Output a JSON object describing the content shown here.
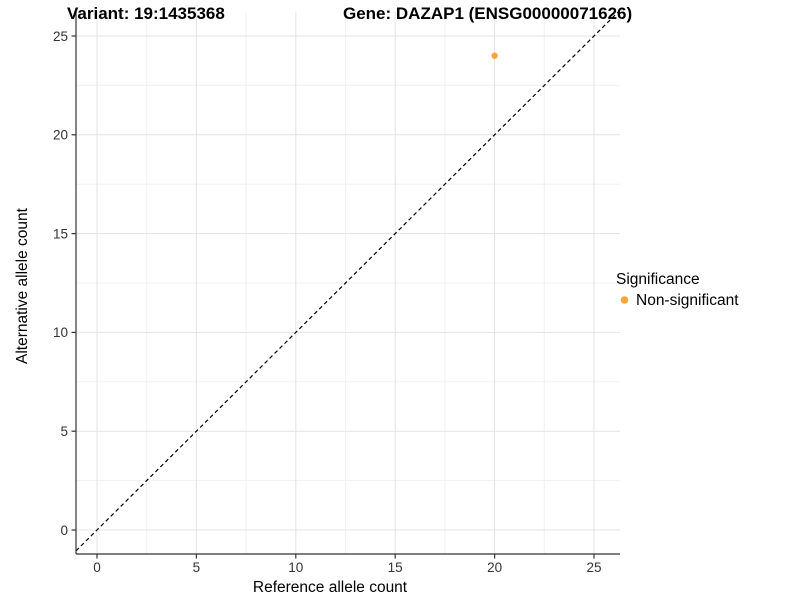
{
  "title": {
    "variant": "Variant: 19:1435368",
    "gene": "Gene: DAZAP1 (ENSG00000071626)"
  },
  "axes": {
    "x_label": "Reference allele count",
    "y_label": "Alternative allele count",
    "x_ticks": [
      0,
      5,
      10,
      15,
      20,
      25
    ],
    "y_ticks": [
      0,
      5,
      10,
      15,
      20,
      25
    ]
  },
  "legend": {
    "title": "Significance",
    "items": [
      {
        "label": "Non-significant",
        "color": "#FAA43C"
      }
    ]
  },
  "colors": {
    "point": "#FAA43C",
    "grid_major": "#e3e3e3",
    "grid_minor": "#f0f0f0",
    "axis_line": "#333333",
    "reference_line": "#000000"
  },
  "chart_data": {
    "type": "scatter",
    "title": "Variant: 19:1435368    Gene: DAZAP1 (ENSG00000071626)",
    "xlabel": "Reference allele count",
    "ylabel": "Alternative allele count",
    "xlim": [
      0,
      25
    ],
    "ylim": [
      0,
      25
    ],
    "grid": true,
    "minor_grid_step": 2.5,
    "legend_position": "right",
    "series": [
      {
        "name": "Non-significant",
        "color": "#FAA43C",
        "points": [
          [
            20,
            24
          ]
        ]
      }
    ],
    "reference_line": {
      "type": "abline",
      "slope": 1,
      "intercept": 0,
      "style": "dashed",
      "color": "#000000"
    }
  }
}
